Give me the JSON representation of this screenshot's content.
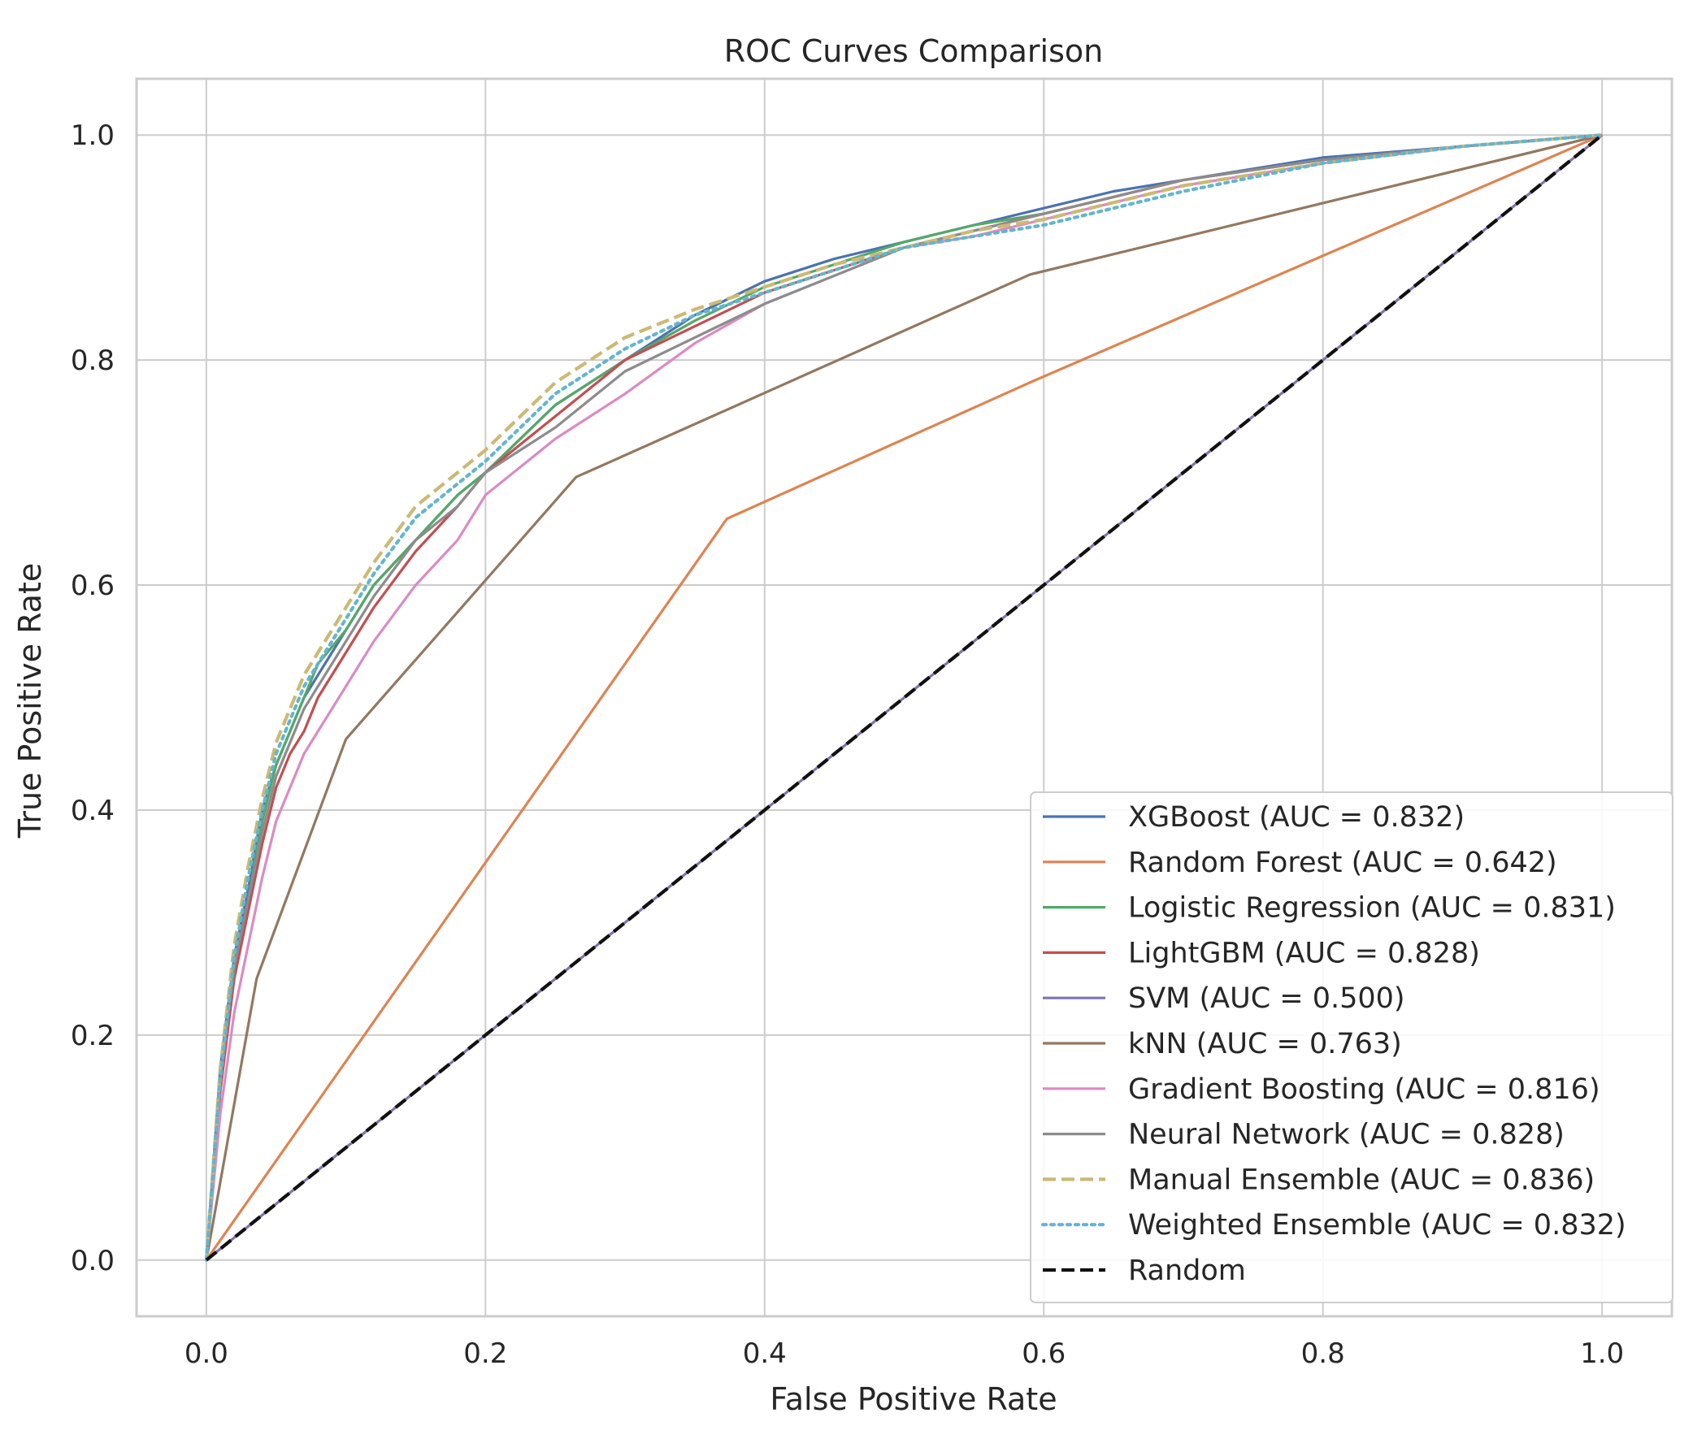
{
  "chart_data": {
    "type": "line",
    "title": "ROC Curves Comparison",
    "xlabel": "False Positive Rate",
    "ylabel": "True Positive Rate",
    "xlim": [
      -0.05,
      1.05
    ],
    "ylim": [
      -0.05,
      1.05
    ],
    "xticks": [
      0.0,
      0.2,
      0.4,
      0.6,
      0.8,
      1.0
    ],
    "yticks": [
      0.0,
      0.2,
      0.4,
      0.6,
      0.8,
      1.0
    ],
    "xtick_labels": [
      "0.0",
      "0.2",
      "0.4",
      "0.6",
      "0.8",
      "1.0"
    ],
    "ytick_labels": [
      "0.0",
      "0.2",
      "0.4",
      "0.6",
      "0.8",
      "1.0"
    ],
    "grid": true,
    "legend_position": "bottom-right",
    "series": [
      {
        "name": "XGBoost (AUC = 0.832)",
        "color": "#4c72b0",
        "dash": "solid",
        "x": [
          0,
          0.01,
          0.02,
          0.03,
          0.04,
          0.05,
          0.06,
          0.07,
          0.08,
          0.1,
          0.12,
          0.15,
          0.18,
          0.2,
          0.25,
          0.3,
          0.35,
          0.4,
          0.45,
          0.5,
          0.55,
          0.6,
          0.65,
          0.7,
          0.8,
          0.9,
          1.0
        ],
        "y": [
          0,
          0.17,
          0.27,
          0.33,
          0.4,
          0.44,
          0.47,
          0.5,
          0.52,
          0.56,
          0.6,
          0.64,
          0.68,
          0.7,
          0.76,
          0.8,
          0.84,
          0.87,
          0.89,
          0.905,
          0.92,
          0.935,
          0.95,
          0.96,
          0.98,
          0.99,
          1.0
        ]
      },
      {
        "name": "Random Forest (AUC = 0.642)",
        "color": "#dd8452",
        "dash": "solid",
        "x": [
          0,
          0.373,
          0.59,
          1.0
        ],
        "y": [
          0,
          0.659,
          0.78,
          1.0
        ]
      },
      {
        "name": "Logistic Regression (AUC = 0.831)",
        "color": "#55a868",
        "dash": "solid",
        "x": [
          0,
          0.01,
          0.02,
          0.03,
          0.04,
          0.05,
          0.06,
          0.07,
          0.08,
          0.1,
          0.12,
          0.15,
          0.18,
          0.2,
          0.25,
          0.3,
          0.35,
          0.4,
          0.45,
          0.5,
          0.55,
          0.6,
          0.65,
          0.7,
          0.8,
          0.9,
          1.0
        ],
        "y": [
          0,
          0.16,
          0.26,
          0.32,
          0.39,
          0.44,
          0.47,
          0.5,
          0.53,
          0.56,
          0.6,
          0.64,
          0.68,
          0.7,
          0.76,
          0.8,
          0.835,
          0.865,
          0.885,
          0.905,
          0.92,
          0.93,
          0.945,
          0.96,
          0.978,
          0.99,
          1.0
        ]
      },
      {
        "name": "LightGBM (AUC = 0.828)",
        "color": "#c44e52",
        "dash": "solid",
        "x": [
          0,
          0.01,
          0.02,
          0.03,
          0.04,
          0.05,
          0.06,
          0.07,
          0.08,
          0.1,
          0.12,
          0.15,
          0.18,
          0.2,
          0.25,
          0.3,
          0.35,
          0.4,
          0.45,
          0.5,
          0.55,
          0.6,
          0.65,
          0.7,
          0.8,
          0.9,
          1.0
        ],
        "y": [
          0,
          0.15,
          0.25,
          0.31,
          0.37,
          0.42,
          0.45,
          0.47,
          0.5,
          0.54,
          0.58,
          0.63,
          0.67,
          0.7,
          0.75,
          0.8,
          0.83,
          0.86,
          0.88,
          0.9,
          0.915,
          0.93,
          0.945,
          0.96,
          0.978,
          0.99,
          1.0
        ]
      },
      {
        "name": "SVM (AUC = 0.500)",
        "color": "#8172b3",
        "dash": "solid",
        "x": [
          0,
          1.0
        ],
        "y": [
          0,
          1.0
        ]
      },
      {
        "name": "kNN (AUC = 0.763)",
        "color": "#937860",
        "dash": "solid",
        "x": [
          0,
          0.036,
          0.1,
          0.265,
          0.59,
          1.0
        ],
        "y": [
          0,
          0.25,
          0.463,
          0.696,
          0.876,
          1.0
        ]
      },
      {
        "name": "Gradient Boosting (AUC = 0.816)",
        "color": "#da8bc3",
        "dash": "solid",
        "x": [
          0,
          0.01,
          0.02,
          0.03,
          0.04,
          0.05,
          0.06,
          0.07,
          0.08,
          0.1,
          0.12,
          0.15,
          0.18,
          0.2,
          0.25,
          0.3,
          0.35,
          0.4,
          0.45,
          0.5,
          0.55,
          0.6,
          0.65,
          0.7,
          0.8,
          0.9,
          1.0
        ],
        "y": [
          0,
          0.13,
          0.22,
          0.28,
          0.34,
          0.39,
          0.42,
          0.45,
          0.47,
          0.51,
          0.55,
          0.6,
          0.64,
          0.68,
          0.73,
          0.77,
          0.815,
          0.85,
          0.875,
          0.9,
          0.91,
          0.925,
          0.94,
          0.955,
          0.975,
          0.99,
          1.0
        ]
      },
      {
        "name": "Neural Network (AUC = 0.828)",
        "color": "#8c8c8c",
        "dash": "solid",
        "x": [
          0,
          0.01,
          0.02,
          0.03,
          0.04,
          0.05,
          0.06,
          0.07,
          0.08,
          0.1,
          0.12,
          0.15,
          0.18,
          0.2,
          0.25,
          0.3,
          0.35,
          0.4,
          0.45,
          0.5,
          0.55,
          0.6,
          0.65,
          0.7,
          0.8,
          0.9,
          1.0
        ],
        "y": [
          0,
          0.16,
          0.26,
          0.32,
          0.38,
          0.43,
          0.46,
          0.49,
          0.51,
          0.55,
          0.59,
          0.64,
          0.67,
          0.7,
          0.74,
          0.79,
          0.82,
          0.85,
          0.875,
          0.9,
          0.915,
          0.93,
          0.945,
          0.96,
          0.978,
          0.99,
          1.0
        ]
      },
      {
        "name": "Manual Ensemble (AUC = 0.836)",
        "color": "#ccb974",
        "dash": "dashed",
        "x": [
          0,
          0.01,
          0.02,
          0.03,
          0.04,
          0.05,
          0.06,
          0.07,
          0.08,
          0.1,
          0.12,
          0.15,
          0.18,
          0.2,
          0.25,
          0.3,
          0.35,
          0.4,
          0.45,
          0.5,
          0.55,
          0.6,
          0.65,
          0.7,
          0.8,
          0.9,
          1.0
        ],
        "y": [
          0,
          0.17,
          0.28,
          0.35,
          0.41,
          0.46,
          0.49,
          0.52,
          0.54,
          0.58,
          0.62,
          0.67,
          0.7,
          0.72,
          0.78,
          0.82,
          0.845,
          0.865,
          0.885,
          0.9,
          0.915,
          0.925,
          0.94,
          0.955,
          0.975,
          0.99,
          1.0
        ]
      },
      {
        "name": "Weighted Ensemble (AUC = 0.832)",
        "color": "#64b5cd",
        "dash": "dotted",
        "x": [
          0,
          0.01,
          0.02,
          0.03,
          0.04,
          0.05,
          0.06,
          0.07,
          0.08,
          0.1,
          0.12,
          0.15,
          0.18,
          0.2,
          0.25,
          0.3,
          0.35,
          0.4,
          0.45,
          0.5,
          0.55,
          0.6,
          0.65,
          0.7,
          0.8,
          0.9,
          1.0
        ],
        "y": [
          0,
          0.16,
          0.27,
          0.34,
          0.4,
          0.45,
          0.48,
          0.51,
          0.53,
          0.57,
          0.61,
          0.66,
          0.69,
          0.71,
          0.77,
          0.81,
          0.84,
          0.86,
          0.88,
          0.9,
          0.91,
          0.92,
          0.935,
          0.95,
          0.975,
          0.99,
          1.0
        ]
      },
      {
        "name": "Random",
        "color": "#111111",
        "dash": "dashed",
        "x": [
          0,
          1.0
        ],
        "y": [
          0,
          1.0
        ]
      }
    ]
  }
}
